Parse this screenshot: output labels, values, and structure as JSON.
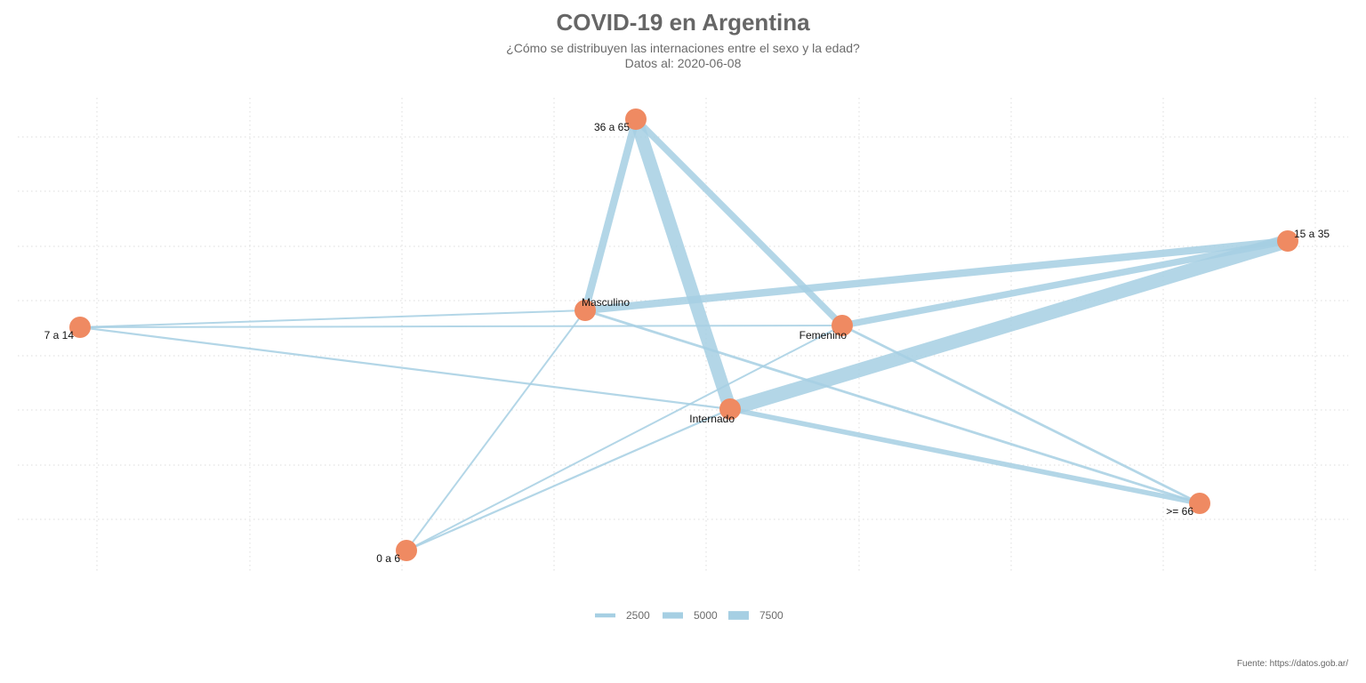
{
  "title": "COVID-19 en Argentina",
  "subtitle_line1": "¿Cómo se distribuyen las internaciones entre el sexo y la edad?",
  "subtitle_line2": "Datos al: 2020-06-08",
  "caption": "Fuente: https://datos.gob.ar/",
  "colors": {
    "edge": "#a6cfe3",
    "node": "#ef8a62",
    "grid": "#dddddd",
    "title": "#666666"
  },
  "chart_data": {
    "type": "network",
    "nodes": [
      {
        "id": "36 a 65",
        "label": "36 a 65",
        "label_pos": "left"
      },
      {
        "id": "15 a 35",
        "label": "15 a 35",
        "label_pos": "right"
      },
      {
        "id": "Masculino",
        "label": "Masculino",
        "label_pos": "above"
      },
      {
        "id": "7 a 14",
        "label": "7 a 14",
        "label_pos": "left"
      },
      {
        "id": "Femenino",
        "label": "Femenino",
        "label_pos": "below-left"
      },
      {
        "id": "Internado",
        "label": "Internado",
        "label_pos": "below-left"
      },
      {
        "id": ">= 66",
        "label": ">= 66",
        "label_pos": "left"
      },
      {
        "id": "0 a 6",
        "label": "0 a 6",
        "label_pos": "left"
      }
    ],
    "edges": [
      {
        "source": "36 a 65",
        "target": "Internado",
        "weight": 8000
      },
      {
        "source": "15 a 35",
        "target": "Internado",
        "weight": 8500
      },
      {
        "source": "36 a 65",
        "target": "Masculino",
        "weight": 4500
      },
      {
        "source": "36 a 65",
        "target": "Femenino",
        "weight": 4000
      },
      {
        "source": "15 a 35",
        "target": "Masculino",
        "weight": 4500
      },
      {
        "source": "15 a 35",
        "target": "Femenino",
        "weight": 4000
      },
      {
        "source": ">= 66",
        "target": "Internado",
        "weight": 3000
      },
      {
        "source": ">= 66",
        "target": "Masculino",
        "weight": 1500
      },
      {
        "source": ">= 66",
        "target": "Femenino",
        "weight": 1500
      },
      {
        "source": "7 a 14",
        "target": "Internado",
        "weight": 1200
      },
      {
        "source": "7 a 14",
        "target": "Masculino",
        "weight": 600
      },
      {
        "source": "7 a 14",
        "target": "Femenino",
        "weight": 600
      },
      {
        "source": "0 a 6",
        "target": "Internado",
        "weight": 1200
      },
      {
        "source": "0 a 6",
        "target": "Masculino",
        "weight": 600
      },
      {
        "source": "0 a 6",
        "target": "Femenino",
        "weight": 600
      }
    ],
    "legend": {
      "placement": "bottom",
      "items": [
        {
          "label": "2500",
          "value": 2500
        },
        {
          "label": "5000",
          "value": 5000
        },
        {
          "label": "7500",
          "value": 7500
        }
      ]
    },
    "grid": true
  }
}
